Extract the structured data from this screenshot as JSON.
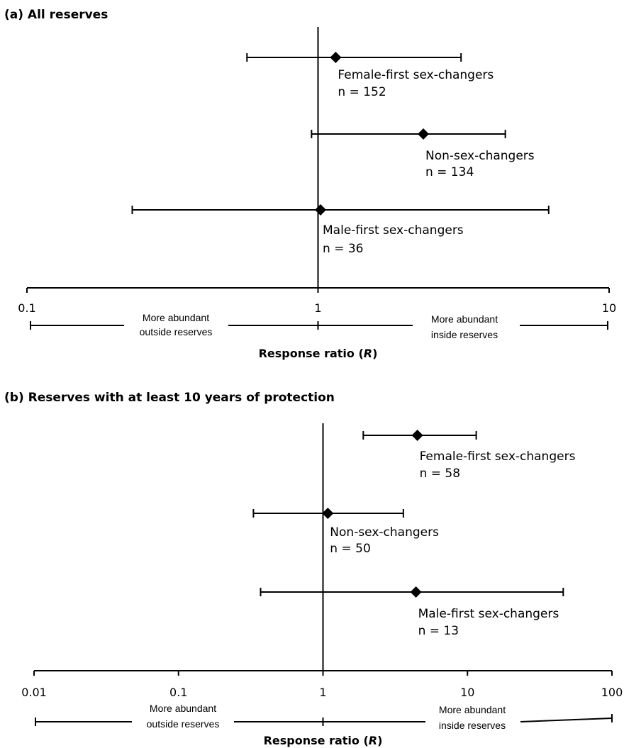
{
  "chart_data": [
    {
      "type": "scatter",
      "panel": "a",
      "title": "(a) All reserves",
      "scale": "log",
      "xlim": [
        0.1,
        10
      ],
      "tick_labels": [
        "0.1",
        "1",
        "10"
      ],
      "xlabel_prefix": "Response ratio (",
      "xlabel_var": "R",
      "xlabel_suffix": ")",
      "annotations": {
        "left_line1": "More abundant",
        "left_line2": "outside reserves",
        "right_line1": "More abundant",
        "right_line2": "inside reserves"
      },
      "series": [
        {
          "name": "Female-first sex-changers",
          "n_label": "n = 152",
          "value": 1.15,
          "ci_low": 0.57,
          "ci_high": 3.1
        },
        {
          "name": "Non-sex-changers",
          "n_label": "n = 134",
          "value": 2.3,
          "ci_low": 0.95,
          "ci_high": 4.4
        },
        {
          "name": "Male-first sex-changers",
          "n_label": "n = 36",
          "value": 1.02,
          "ci_low": 0.23,
          "ci_high": 6.2
        }
      ]
    },
    {
      "type": "scatter",
      "panel": "b",
      "title": "(b) Reserves with at least 10 years of protection",
      "scale": "log",
      "xlim": [
        0.01,
        100
      ],
      "tick_labels": [
        "0.01",
        "0.1",
        "1",
        "10",
        "100"
      ],
      "xlabel_prefix": "Response ratio (",
      "xlabel_var": "R",
      "xlabel_suffix": ")",
      "annotations": {
        "left_line1": "More abundant",
        "left_line2": "outside reserves",
        "right_line1": "More abundant",
        "right_line2": "inside reserves"
      },
      "series": [
        {
          "name": "Female-first sex-changers",
          "n_label": "n = 58",
          "value": 4.5,
          "ci_low": 1.9,
          "ci_high": 11.5
        },
        {
          "name": "Non-sex-changers",
          "n_label": "n = 50",
          "value": 1.08,
          "ci_low": 0.33,
          "ci_high": 3.6
        },
        {
          "name": "Male-first sex-changers",
          "n_label": "n = 13",
          "value": 4.4,
          "ci_low": 0.37,
          "ci_high": 46
        }
      ]
    }
  ]
}
